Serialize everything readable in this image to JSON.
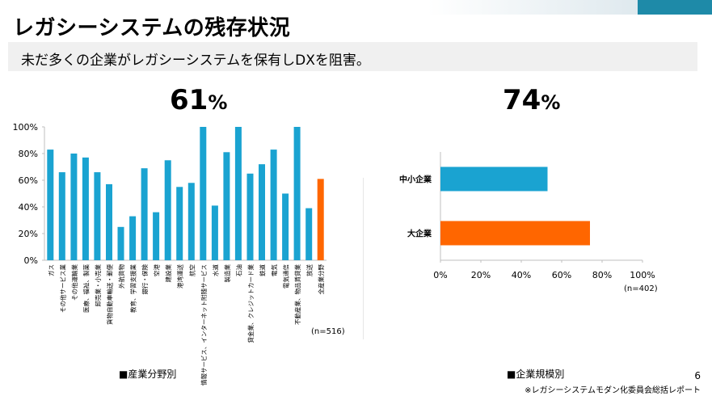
{
  "header": {
    "title": "レガシーシステムの残存状況",
    "subtitle": "未だ多くの企業がレガシーシステムを保有しDXを阻害。"
  },
  "left": {
    "big_value": "61",
    "big_unit": "%",
    "note": "(n=516)",
    "legend": "■産業分野別"
  },
  "right": {
    "big_value": "74",
    "big_unit": "%",
    "note": "(n=402)",
    "legend": "■企業規模別"
  },
  "footer": {
    "page": "6",
    "source": "※レガシーシステムモダン化委員会総括レポート"
  },
  "chart_data": [
    {
      "type": "bar",
      "orientation": "vertical",
      "categories": [
        "ガス",
        "その他サービス業",
        "その他運輸業",
        "医療、福祉、製薬",
        "卸売業・小売業",
        "貨物自動車輸送・郵便",
        "外航貨物",
        "教育、学習支援業",
        "銀行・保険",
        "空港",
        "建設業",
        "港湾運送",
        "航空",
        "情報サービス、インターネット附随サービス",
        "水道",
        "製造業",
        "石油",
        "貸金業、クレジットカード業",
        "鉄道",
        "電気",
        "電気通信",
        "不動産業、物品賃貸業",
        "放送",
        "全産業分野"
      ],
      "values": [
        83,
        66,
        80,
        77,
        66,
        57,
        25,
        33,
        69,
        36,
        75,
        55,
        58,
        100,
        41,
        81,
        100,
        65,
        72,
        83,
        50,
        100,
        39,
        61
      ],
      "highlight_index": 23,
      "colors": {
        "bar": "#1aa3d1",
        "highlight": "#ff6600"
      },
      "ylim": [
        0,
        100
      ],
      "yticks": [
        "0%",
        "20%",
        "40%",
        "60%",
        "80%",
        "100%"
      ],
      "grid": false
    },
    {
      "type": "bar",
      "orientation": "horizontal",
      "categories": [
        "中小企業",
        "大企業"
      ],
      "values": [
        53,
        74
      ],
      "colors": [
        "#1aa3d1",
        "#ff6600"
      ],
      "xlim": [
        0,
        100
      ],
      "xticks": [
        "0%",
        "20%",
        "40%",
        "60%",
        "80%",
        "100%"
      ],
      "grid": false
    }
  ]
}
